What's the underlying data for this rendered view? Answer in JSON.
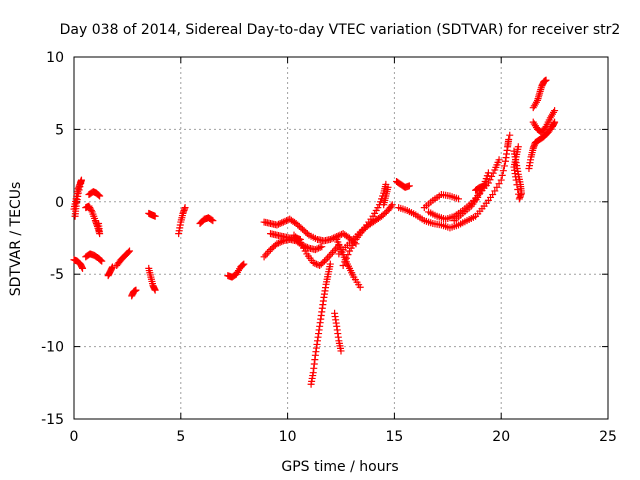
{
  "chart_data": {
    "type": "scatter",
    "title": "Day 038 of 2014, Sidereal Day-to-day VTEC variation (SDTVAR) for receiver str2",
    "xlabel": "GPS time / hours",
    "ylabel": "SDTVAR / TECUs",
    "xlim": [
      0,
      25
    ],
    "ylim": [
      -15,
      10
    ],
    "x_ticks": [
      0,
      5,
      10,
      15,
      20,
      25
    ],
    "y_ticks": [
      -15,
      -10,
      -5,
      0,
      5,
      10
    ],
    "grid": true,
    "marker": "+",
    "marker_color": "#ff0000",
    "series": [
      {
        "name": "str2",
        "segments": [
          {
            "points": [
              [
                0.0,
                -0.5
              ],
              [
                0.1,
                0.2
              ],
              [
                0.2,
                0.9
              ],
              [
                0.3,
                1.3
              ],
              [
                0.35,
                1.5
              ],
              [
                0.2,
                0.6
              ],
              [
                0.1,
                -0.3
              ],
              [
                0.05,
                -1.0
              ]
            ]
          },
          {
            "points": [
              [
                0.0,
                -4.0
              ],
              [
                0.15,
                -4.1
              ],
              [
                0.3,
                -4.3
              ],
              [
                0.4,
                -4.6
              ]
            ]
          },
          {
            "points": [
              [
                0.55,
                -0.4
              ],
              [
                0.7,
                -0.3
              ],
              [
                0.85,
                -0.7
              ],
              [
                1.0,
                -1.3
              ],
              [
                1.1,
                -1.7
              ],
              [
                1.2,
                -2.2
              ],
              [
                1.15,
                -1.5
              ]
            ]
          },
          {
            "points": [
              [
                0.7,
                0.5
              ],
              [
                0.9,
                0.7
              ],
              [
                1.05,
                0.6
              ],
              [
                1.2,
                0.4
              ]
            ]
          },
          {
            "points": [
              [
                0.55,
                -3.8
              ],
              [
                0.75,
                -3.6
              ],
              [
                0.95,
                -3.7
              ],
              [
                1.15,
                -3.9
              ],
              [
                1.3,
                -4.1
              ]
            ]
          },
          {
            "points": [
              [
                1.6,
                -5.1
              ],
              [
                1.7,
                -4.8
              ],
              [
                1.8,
                -4.5
              ]
            ]
          },
          {
            "points": [
              [
                2.0,
                -4.4
              ],
              [
                2.2,
                -4.0
              ],
              [
                2.4,
                -3.7
              ],
              [
                2.6,
                -3.4
              ]
            ]
          },
          {
            "points": [
              [
                2.7,
                -6.5
              ],
              [
                2.8,
                -6.2
              ],
              [
                2.9,
                -6.1
              ]
            ]
          },
          {
            "points": [
              [
                3.5,
                -4.6
              ],
              [
                3.6,
                -5.2
              ],
              [
                3.7,
                -5.8
              ],
              [
                3.8,
                -6.1
              ]
            ]
          },
          {
            "points": [
              [
                3.5,
                -0.8
              ],
              [
                3.65,
                -0.9
              ],
              [
                3.8,
                -1.0
              ]
            ]
          },
          {
            "points": [
              [
                4.9,
                -2.2
              ],
              [
                5.0,
                -1.4
              ],
              [
                5.1,
                -0.8
              ],
              [
                5.2,
                -0.4
              ]
            ]
          },
          {
            "points": [
              [
                5.9,
                -1.5
              ],
              [
                6.1,
                -1.2
              ],
              [
                6.3,
                -1.1
              ],
              [
                6.5,
                -1.3
              ]
            ]
          },
          {
            "points": [
              [
                7.2,
                -5.1
              ],
              [
                7.4,
                -5.2
              ],
              [
                7.6,
                -5.0
              ],
              [
                7.8,
                -4.5
              ],
              [
                7.95,
                -4.3
              ]
            ]
          },
          {
            "points": [
              [
                8.9,
                -1.4
              ],
              [
                9.2,
                -1.5
              ],
              [
                9.5,
                -1.6
              ],
              [
                9.8,
                -1.4
              ],
              [
                10.1,
                -1.2
              ],
              [
                10.4,
                -1.5
              ],
              [
                10.7,
                -1.9
              ],
              [
                11.0,
                -2.3
              ],
              [
                11.4,
                -2.6
              ],
              [
                11.7,
                -2.7
              ],
              [
                12.0,
                -2.6
              ],
              [
                12.3,
                -2.4
              ],
              [
                12.6,
                -2.2
              ],
              [
                12.9,
                -2.5
              ],
              [
                13.2,
                -2.9
              ]
            ]
          },
          {
            "points": [
              [
                8.9,
                -3.8
              ],
              [
                9.2,
                -3.3
              ],
              [
                9.5,
                -2.9
              ],
              [
                9.8,
                -2.7
              ],
              [
                10.1,
                -2.6
              ],
              [
                10.4,
                -2.7
              ],
              [
                10.7,
                -3.0
              ],
              [
                11.0,
                -3.2
              ],
              [
                11.3,
                -3.3
              ],
              [
                11.6,
                -3.1
              ]
            ]
          },
          {
            "points": [
              [
                9.2,
                -2.2
              ],
              [
                9.5,
                -2.3
              ],
              [
                9.8,
                -2.4
              ],
              [
                10.1,
                -2.5
              ],
              [
                10.4,
                -2.5
              ],
              [
                10.6,
                -2.6
              ]
            ]
          },
          {
            "points": [
              [
                10.3,
                -2.3
              ],
              [
                10.6,
                -2.8
              ],
              [
                10.9,
                -3.6
              ],
              [
                11.2,
                -4.2
              ],
              [
                11.5,
                -4.4
              ],
              [
                11.8,
                -4.0
              ],
              [
                12.1,
                -3.5
              ],
              [
                12.4,
                -3.0
              ]
            ]
          },
          {
            "points": [
              [
                11.1,
                -12.6
              ],
              [
                11.2,
                -11.8
              ],
              [
                11.3,
                -10.6
              ],
              [
                11.4,
                -9.6
              ],
              [
                11.5,
                -8.6
              ],
              [
                11.6,
                -7.6
              ],
              [
                11.7,
                -6.6
              ],
              [
                11.8,
                -5.7
              ],
              [
                11.9,
                -5.0
              ],
              [
                12.0,
                -4.3
              ]
            ]
          },
          {
            "points": [
              [
                12.2,
                -7.7
              ],
              [
                12.3,
                -8.6
              ],
              [
                12.4,
                -9.6
              ],
              [
                12.5,
                -10.3
              ]
            ]
          },
          {
            "points": [
              [
                12.3,
                -2.6
              ],
              [
                12.5,
                -3.3
              ],
              [
                12.7,
                -4.0
              ],
              [
                12.9,
                -4.6
              ],
              [
                13.1,
                -5.2
              ],
              [
                13.4,
                -5.9
              ]
            ]
          },
          {
            "points": [
              [
                12.6,
                -4.4
              ],
              [
                12.9,
                -3.4
              ],
              [
                13.2,
                -2.6
              ],
              [
                13.5,
                -2.0
              ],
              [
                13.8,
                -1.6
              ],
              [
                14.1,
                -1.3
              ],
              [
                14.4,
                -1.0
              ],
              [
                14.7,
                -0.6
              ],
              [
                14.9,
                -0.2
              ]
            ]
          },
          {
            "points": [
              [
                12.4,
                -3.6
              ],
              [
                12.8,
                -3.0
              ],
              [
                13.2,
                -2.4
              ],
              [
                13.6,
                -1.8
              ],
              [
                14.0,
                -1.0
              ],
              [
                14.3,
                -0.2
              ],
              [
                14.5,
                0.6
              ],
              [
                14.6,
                1.2
              ]
            ]
          },
          {
            "points": [
              [
                14.7,
                1.0
              ],
              [
                14.6,
                0.4
              ],
              [
                14.5,
                -0.2
              ]
            ]
          },
          {
            "points": [
              [
                15.1,
                1.4
              ],
              [
                15.3,
                1.2
              ],
              [
                15.5,
                1.0
              ],
              [
                15.7,
                1.1
              ]
            ]
          },
          {
            "points": [
              [
                15.2,
                -0.4
              ],
              [
                15.6,
                -0.6
              ],
              [
                16.0,
                -0.9
              ],
              [
                16.4,
                -1.3
              ],
              [
                16.8,
                -1.5
              ],
              [
                17.2,
                -1.6
              ],
              [
                17.6,
                -1.8
              ],
              [
                18.0,
                -1.6
              ],
              [
                18.4,
                -1.3
              ],
              [
                18.8,
                -1.0
              ],
              [
                19.2,
                -0.3
              ],
              [
                19.6,
                0.5
              ],
              [
                20.0,
                1.5
              ],
              [
                20.2,
                2.8
              ],
              [
                20.3,
                3.8
              ],
              [
                20.35,
                4.3
              ]
            ]
          },
          {
            "points": [
              [
                16.6,
                -0.7
              ],
              [
                17.0,
                -1.0
              ],
              [
                17.4,
                -1.2
              ],
              [
                17.8,
                -1.0
              ],
              [
                18.2,
                -0.6
              ],
              [
                18.6,
                -0.1
              ],
              [
                19.0,
                0.6
              ],
              [
                19.4,
                1.3
              ],
              [
                19.7,
                2.2
              ],
              [
                19.9,
                2.9
              ]
            ]
          },
          {
            "points": [
              [
                16.4,
                -0.4
              ],
              [
                16.8,
                0.1
              ],
              [
                17.2,
                0.5
              ],
              [
                17.6,
                0.4
              ],
              [
                18.0,
                0.2
              ]
            ]
          },
          {
            "points": [
              [
                17.8,
                -1.3
              ],
              [
                18.2,
                -0.8
              ],
              [
                18.6,
                -0.3
              ],
              [
                18.9,
                0.3
              ],
              [
                19.2,
                1.2
              ],
              [
                19.4,
                2.0
              ]
            ]
          },
          {
            "points": [
              [
                18.8,
                0.8
              ],
              [
                19.0,
                1.0
              ],
              [
                19.2,
                1.1
              ]
            ]
          },
          {
            "points": [
              [
                20.6,
                3.5
              ],
              [
                20.7,
                2.7
              ],
              [
                20.8,
                1.9
              ],
              [
                20.9,
                1.2
              ],
              [
                20.95,
                0.6
              ],
              [
                20.85,
                0.2
              ],
              [
                20.7,
                1.5
              ],
              [
                20.6,
                2.4
              ],
              [
                20.7,
                3.1
              ],
              [
                20.8,
                3.8
              ]
            ]
          },
          {
            "points": [
              [
                20.4,
                4.6
              ]
            ]
          },
          {
            "points": [
              [
                21.3,
                2.3
              ],
              [
                21.4,
                3.1
              ],
              [
                21.5,
                3.7
              ],
              [
                21.6,
                4.1
              ],
              [
                21.8,
                4.3
              ],
              [
                22.0,
                4.5
              ],
              [
                22.2,
                4.8
              ],
              [
                22.4,
                5.2
              ],
              [
                22.5,
                5.5
              ]
            ]
          },
          {
            "points": [
              [
                21.5,
                5.5
              ],
              [
                21.7,
                5.0
              ],
              [
                21.9,
                4.8
              ],
              [
                22.1,
                5.2
              ],
              [
                22.3,
                5.8
              ],
              [
                22.5,
                6.3
              ]
            ]
          },
          {
            "points": [
              [
                21.5,
                6.5
              ],
              [
                21.7,
                7.0
              ],
              [
                21.8,
                7.5
              ],
              [
                21.9,
                8.0
              ],
              [
                22.0,
                8.3
              ],
              [
                22.1,
                8.4
              ]
            ]
          }
        ]
      }
    ]
  }
}
